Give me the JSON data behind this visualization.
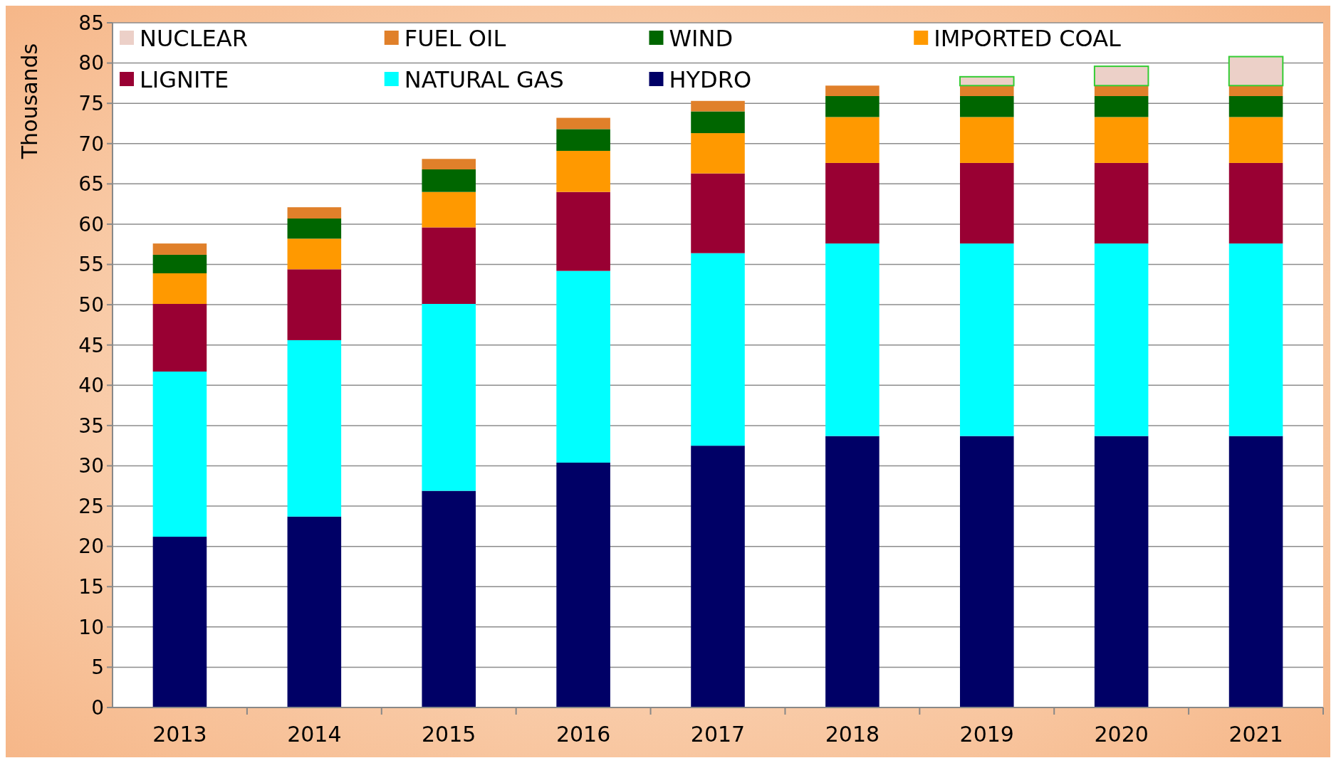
{
  "chart_data": {
    "type": "bar",
    "stacked": true,
    "ylabel": "Thousands",
    "categories": [
      "2013",
      "2014",
      "2015",
      "2016",
      "2017",
      "2018",
      "2019",
      "2020",
      "2021"
    ],
    "series": [
      {
        "name": "HYDRO",
        "color": "#000066",
        "values": [
          21.2,
          23.7,
          26.9,
          30.4,
          32.5,
          33.7,
          33.7,
          33.7,
          33.7
        ]
      },
      {
        "name": "NATURAL GAS",
        "color": "#00ffff",
        "values": [
          20.5,
          21.9,
          23.2,
          23.8,
          23.9,
          23.9,
          23.9,
          23.9,
          23.9
        ]
      },
      {
        "name": "LIGNITE",
        "color": "#990033",
        "values": [
          8.4,
          8.8,
          9.5,
          9.8,
          9.9,
          10.0,
          10.0,
          10.0,
          10.0
        ]
      },
      {
        "name": "IMPORTED COAL",
        "color": "#ff9900",
        "values": [
          3.8,
          3.8,
          4.4,
          5.1,
          5.0,
          5.7,
          5.7,
          5.7,
          5.7
        ]
      },
      {
        "name": "WIND",
        "color": "#006600",
        "values": [
          2.3,
          2.5,
          2.8,
          2.7,
          2.7,
          2.6,
          2.6,
          2.6,
          2.6
        ]
      },
      {
        "name": "FUEL OIL",
        "color": "#e0802a",
        "values": [
          1.4,
          1.4,
          1.3,
          1.4,
          1.3,
          1.3,
          1.3,
          1.3,
          1.3
        ]
      },
      {
        "name": "NUCLEAR",
        "color": "#ecd0c8",
        "values": [
          null,
          null,
          null,
          null,
          null,
          null,
          1.1,
          2.4,
          3.6
        ]
      }
    ],
    "ylim": [
      0,
      85
    ],
    "yticks": [
      0,
      5,
      10,
      15,
      20,
      25,
      30,
      35,
      40,
      45,
      50,
      55,
      60,
      65,
      70,
      75,
      80,
      85
    ],
    "grid": "y",
    "legend": "top"
  }
}
